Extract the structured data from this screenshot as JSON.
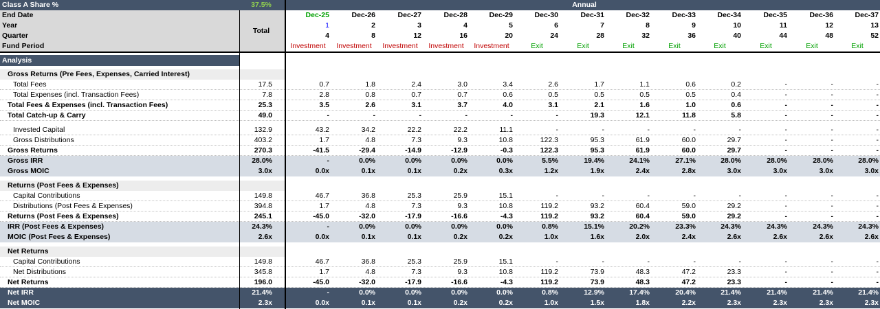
{
  "header": {
    "share_label": "Class A Share %",
    "share_value": "37.5%",
    "annual_label": "Annual",
    "total_label": "Total",
    "end_date_label": "End Date",
    "year_label": "Year",
    "quarter_label": "Quarter",
    "fund_period_label": "Fund Period",
    "dates": [
      "Dec-25",
      "Dec-26",
      "Dec-27",
      "Dec-28",
      "Dec-29",
      "Dec-30",
      "Dec-31",
      "Dec-32",
      "Dec-33",
      "Dec-34",
      "Dec-35",
      "Dec-36",
      "Dec-37"
    ],
    "years": [
      "1",
      "2",
      "3",
      "4",
      "5",
      "6",
      "7",
      "8",
      "9",
      "10",
      "11",
      "12",
      "13"
    ],
    "quarters": [
      "4",
      "8",
      "12",
      "16",
      "20",
      "24",
      "28",
      "32",
      "36",
      "40",
      "44",
      "48",
      "52"
    ],
    "periods": [
      "Investment",
      "Investment",
      "Investment",
      "Investment",
      "Investment",
      "Exit",
      "Exit",
      "Exit",
      "Exit",
      "Exit",
      "Exit",
      "Exit",
      "Exit"
    ]
  },
  "analysis_label": "Analysis",
  "rows": [
    {
      "label": "Gross Returns (Pre Fees, Expenses, Carried Interest)",
      "indent": 1,
      "style": "section",
      "total": "",
      "values": []
    },
    {
      "label": "Total Fees",
      "indent": 2,
      "style": "normal",
      "total": "17.5",
      "values": [
        "0.7",
        "1.8",
        "2.4",
        "3.0",
        "3.4",
        "2.6",
        "1.7",
        "1.1",
        "0.6",
        "0.2",
        "-",
        "-",
        "-"
      ]
    },
    {
      "label": "Total Expenses (incl. Transaction Fees)",
      "indent": 2,
      "style": "normal",
      "total": "7.8",
      "values": [
        "2.8",
        "0.8",
        "0.7",
        "0.7",
        "0.6",
        "0.5",
        "0.5",
        "0.5",
        "0.5",
        "0.4",
        "-",
        "-",
        "-"
      ]
    },
    {
      "label": "Total Fees & Expenses (incl. Transaction Fees)",
      "indent": 1,
      "style": "bold",
      "total": "25.3",
      "values": [
        "3.5",
        "2.6",
        "3.1",
        "3.7",
        "4.0",
        "3.1",
        "2.1",
        "1.6",
        "1.0",
        "0.6",
        "-",
        "-",
        "-"
      ]
    },
    {
      "label": "Total Catch-up & Carry",
      "indent": 1,
      "style": "bold",
      "total": "49.0",
      "values": [
        "-",
        "-",
        "-",
        "-",
        "-",
        "-",
        "19.3",
        "12.1",
        "11.8",
        "5.8",
        "-",
        "-",
        "-"
      ]
    },
    {
      "label": "Invested Capital",
      "indent": 2,
      "style": "normal",
      "total": "132.9",
      "values": [
        "43.2",
        "34.2",
        "22.2",
        "22.2",
        "11.1",
        "-",
        "-",
        "-",
        "-",
        "-",
        "-",
        "-",
        "-"
      ]
    },
    {
      "label": "Gross Distributions",
      "indent": 2,
      "style": "normal",
      "total": "403.2",
      "values": [
        "1.7",
        "4.8",
        "7.3",
        "9.3",
        "10.8",
        "122.3",
        "95.3",
        "61.9",
        "60.0",
        "29.7",
        "-",
        "-",
        "-"
      ]
    },
    {
      "label": "Gross Returns",
      "indent": 1,
      "style": "bold",
      "total": "270.3",
      "values": [
        "-41.5",
        "-29.4",
        "-14.9",
        "-12.9",
        "-0.3",
        "122.3",
        "95.3",
        "61.9",
        "60.0",
        "29.7",
        "-",
        "-",
        "-"
      ]
    },
    {
      "label": "Gross IRR",
      "indent": 1,
      "style": "gray",
      "total": "28.0%",
      "values": [
        "-",
        "0.0%",
        "0.0%",
        "0.0%",
        "0.0%",
        "5.5%",
        "19.4%",
        "24.1%",
        "27.1%",
        "28.0%",
        "28.0%",
        "28.0%",
        "28.0%"
      ]
    },
    {
      "label": "Gross MOIC",
      "indent": 1,
      "style": "gray",
      "total": "3.0x",
      "values": [
        "0.0x",
        "0.1x",
        "0.1x",
        "0.2x",
        "0.3x",
        "1.2x",
        "1.9x",
        "2.4x",
        "2.8x",
        "3.0x",
        "3.0x",
        "3.0x",
        "3.0x"
      ]
    },
    {
      "label": "Returns (Post Fees & Expenses)",
      "indent": 1,
      "style": "section",
      "total": "",
      "values": []
    },
    {
      "label": "Capital Contributions",
      "indent": 2,
      "style": "normal",
      "total": "149.8",
      "values": [
        "46.7",
        "36.8",
        "25.3",
        "25.9",
        "15.1",
        "-",
        "-",
        "-",
        "-",
        "-",
        "-",
        "-",
        "-"
      ]
    },
    {
      "label": "Distributions (Post Fees & Expenses)",
      "indent": 2,
      "style": "normal",
      "total": "394.8",
      "values": [
        "1.7",
        "4.8",
        "7.3",
        "9.3",
        "10.8",
        "119.2",
        "93.2",
        "60.4",
        "59.0",
        "29.2",
        "-",
        "-",
        "-"
      ]
    },
    {
      "label": "Returns (Post Fees & Expenses)",
      "indent": 1,
      "style": "bold",
      "total": "245.1",
      "values": [
        "-45.0",
        "-32.0",
        "-17.9",
        "-16.6",
        "-4.3",
        "119.2",
        "93.2",
        "60.4",
        "59.0",
        "29.2",
        "-",
        "-",
        "-"
      ]
    },
    {
      "label": "IRR (Post Fees & Expenses)",
      "indent": 1,
      "style": "gray",
      "total": "24.3%",
      "values": [
        "-",
        "0.0%",
        "0.0%",
        "0.0%",
        "0.0%",
        "0.8%",
        "15.1%",
        "20.2%",
        "23.3%",
        "24.3%",
        "24.3%",
        "24.3%",
        "24.3%"
      ]
    },
    {
      "label": "MOIC (Post Fees & Expenses)",
      "indent": 1,
      "style": "gray",
      "total": "2.6x",
      "values": [
        "0.0x",
        "0.1x",
        "0.1x",
        "0.2x",
        "0.2x",
        "1.0x",
        "1.6x",
        "2.0x",
        "2.4x",
        "2.6x",
        "2.6x",
        "2.6x",
        "2.6x"
      ]
    },
    {
      "label": "Net Returns",
      "indent": 1,
      "style": "section",
      "total": "",
      "values": []
    },
    {
      "label": "Capital Contributions",
      "indent": 2,
      "style": "normal",
      "total": "149.8",
      "values": [
        "46.7",
        "36.8",
        "25.3",
        "25.9",
        "15.1",
        "-",
        "-",
        "-",
        "-",
        "-",
        "-",
        "-",
        "-"
      ]
    },
    {
      "label": "Net Distributions",
      "indent": 2,
      "style": "normal",
      "total": "345.8",
      "values": [
        "1.7",
        "4.8",
        "7.3",
        "9.3",
        "10.8",
        "119.2",
        "73.9",
        "48.3",
        "47.2",
        "23.3",
        "-",
        "-",
        "-"
      ]
    },
    {
      "label": "Net Returns",
      "indent": 1,
      "style": "bold",
      "total": "196.0",
      "values": [
        "-45.0",
        "-32.0",
        "-17.9",
        "-16.6",
        "-4.3",
        "119.2",
        "73.9",
        "48.3",
        "47.2",
        "23.3",
        "-",
        "-",
        "-"
      ]
    },
    {
      "label": "Net IRR",
      "indent": 1,
      "style": "dark",
      "total": "21.4%",
      "values": [
        "-",
        "0.0%",
        "0.0%",
        "0.0%",
        "0.0%",
        "0.8%",
        "12.9%",
        "17.4%",
        "20.4%",
        "21.4%",
        "21.4%",
        "21.4%",
        "21.4%"
      ]
    },
    {
      "label": "Net MOIC",
      "indent": 1,
      "style": "dark",
      "total": "2.3x",
      "values": [
        "0.0x",
        "0.1x",
        "0.1x",
        "0.2x",
        "0.2x",
        "1.0x",
        "1.5x",
        "1.8x",
        "2.2x",
        "2.3x",
        "2.3x",
        "2.3x",
        "2.3x"
      ]
    }
  ],
  "colors": {
    "dark_band": "#44546a",
    "gray_band": "#d6dce4",
    "share_value": "#00b050",
    "investment": "#c00000",
    "exit": "#00a000",
    "first_year": "#0000ff"
  }
}
